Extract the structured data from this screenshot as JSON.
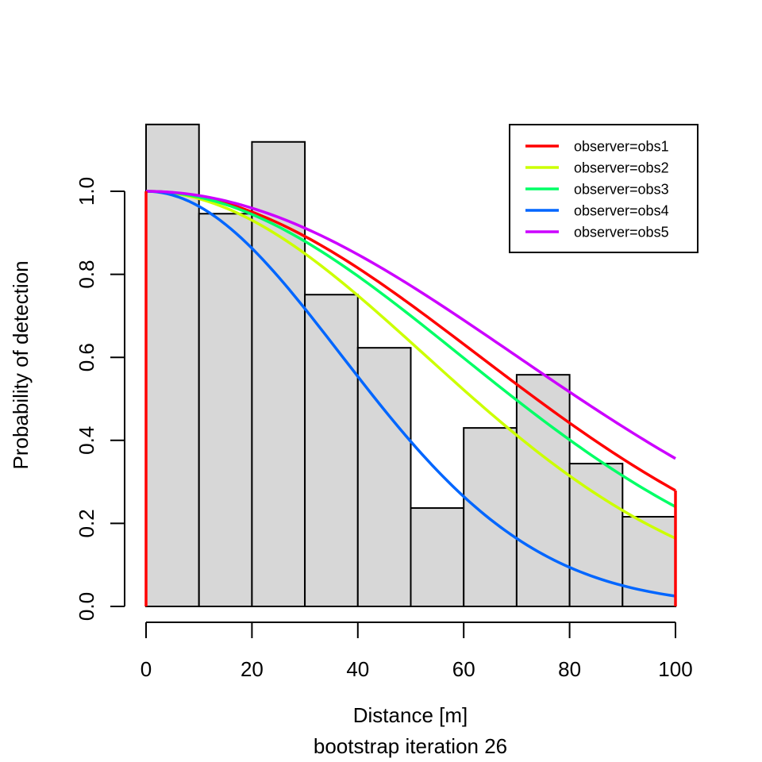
{
  "chart_data": {
    "type": "bar",
    "title": "",
    "xlabel": "Distance [m]",
    "subtitle": "bootstrap iteration 26",
    "ylabel": "Probability of detection",
    "xlim": [
      0,
      100
    ],
    "ylim": [
      0,
      1
    ],
    "x_ticks": [
      0,
      20,
      40,
      60,
      80,
      100
    ],
    "x_tick_labels": [
      "0",
      "20",
      "40",
      "60",
      "80",
      "100"
    ],
    "y_ticks": [
      0.0,
      0.2,
      0.4,
      0.6,
      0.8,
      1.0
    ],
    "y_tick_labels": [
      "0.0",
      "0.2",
      "0.4",
      "0.6",
      "0.8",
      "1.0"
    ],
    "histogram": {
      "bin_edges": [
        0,
        10,
        20,
        30,
        40,
        50,
        60,
        70,
        80,
        90,
        100
      ],
      "values": [
        1.161,
        0.946,
        1.119,
        0.751,
        0.623,
        0.237,
        0.43,
        0.558,
        0.344,
        0.216
      ],
      "fill": "#d7d7d7"
    },
    "legend_position": "top-right",
    "series": [
      {
        "name": "observer=obs1",
        "color": "#ff0000",
        "model": "half-normal",
        "sigma": 62.6,
        "p_at_100": 0.275
      },
      {
        "name": "observer=obs2",
        "color": "#ccff00",
        "model": "half-normal",
        "sigma": 52.6,
        "p_at_100": 0.165
      },
      {
        "name": "observer=obs3",
        "color": "#00ff66",
        "model": "half-normal",
        "sigma": 59.2,
        "p_at_100": 0.237
      },
      {
        "name": "observer=obs4",
        "color": "#0066ff",
        "model": "half-normal",
        "sigma": 36.8,
        "p_at_100": 0.025
      },
      {
        "name": "observer=obs5",
        "color": "#cc00ff",
        "model": "half-normal",
        "sigma": 69.6,
        "p_at_100": 0.355
      }
    ]
  }
}
